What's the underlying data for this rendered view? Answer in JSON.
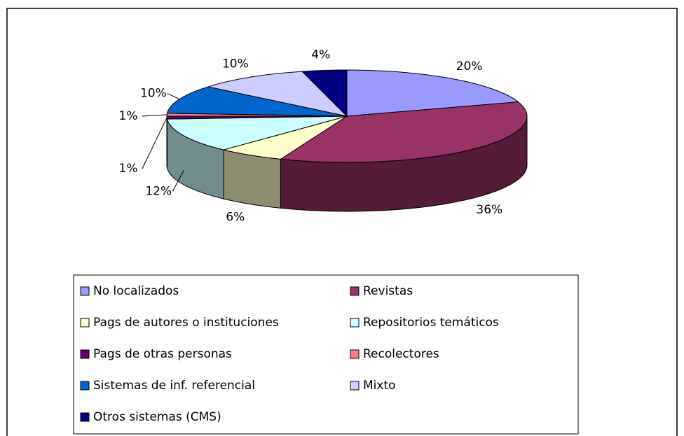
{
  "chart_data": {
    "type": "pie3d",
    "categories": [
      "No localizados",
      "Revistas",
      "Pags de autores o instituciones",
      "Repositorios temáticos",
      "Pags de otras personas",
      "Recolectores",
      "Sistemas de inf. referencial",
      "Mixto",
      "Otros sistemas (CMS)"
    ],
    "values": [
      20,
      36,
      6,
      12,
      1,
      1,
      10,
      10,
      4
    ],
    "value_labels": [
      "20%",
      "36%",
      "6%",
      "12%",
      "1%",
      "1%",
      "10%",
      "10%",
      "4%"
    ],
    "colors": [
      "#9999ff",
      "#993366",
      "#ffffcc",
      "#ccffff",
      "#660066",
      "#ff8080",
      "#0066cc",
      "#ccccff",
      "#000080"
    ],
    "legend": "bottom"
  }
}
